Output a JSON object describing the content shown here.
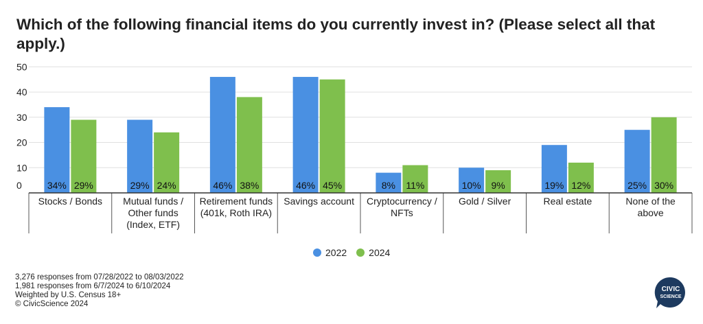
{
  "title": "Which of the following financial items do you currently invest in? (Please select all that apply.)",
  "chart_data": {
    "type": "bar",
    "categories": [
      [
        "Stocks / Bonds"
      ],
      [
        "Mutual funds /",
        "Other funds",
        "(Index, ETF)"
      ],
      [
        "Retirement funds",
        "(401k, Roth IRA)"
      ],
      [
        "Savings account"
      ],
      [
        "Cryptocurrency /",
        "NFTs"
      ],
      [
        "Gold / Silver"
      ],
      [
        "Real estate"
      ],
      [
        "None of the",
        "above"
      ]
    ],
    "series": [
      {
        "name": "2022",
        "color": "#4A90E2",
        "values": [
          34,
          29,
          46,
          46,
          8,
          10,
          19,
          25
        ]
      },
      {
        "name": "2024",
        "color": "#7FBF4D",
        "values": [
          29,
          24,
          38,
          45,
          11,
          9,
          12,
          30
        ]
      }
    ],
    "value_suffix": "%",
    "yticks": [
      0,
      10,
      20,
      30,
      40,
      50
    ],
    "ylim": [
      0,
      52
    ],
    "grid": true,
    "legend_position": "bottom-center"
  },
  "legend": {
    "label_2022": "2022",
    "label_2024": "2024"
  },
  "footer": {
    "line1": "3,276 responses from 07/28/2022 to 08/03/2022",
    "line2": "1,981 responses from 6/7/2024 to 6/10/2024",
    "line3": "Weighted by U.S. Census 18+",
    "line4": "© CivicScience 2024"
  },
  "logo": {
    "line1": "CIVIC",
    "line2": "SCIENCE",
    "color": "#1D3A5F"
  }
}
